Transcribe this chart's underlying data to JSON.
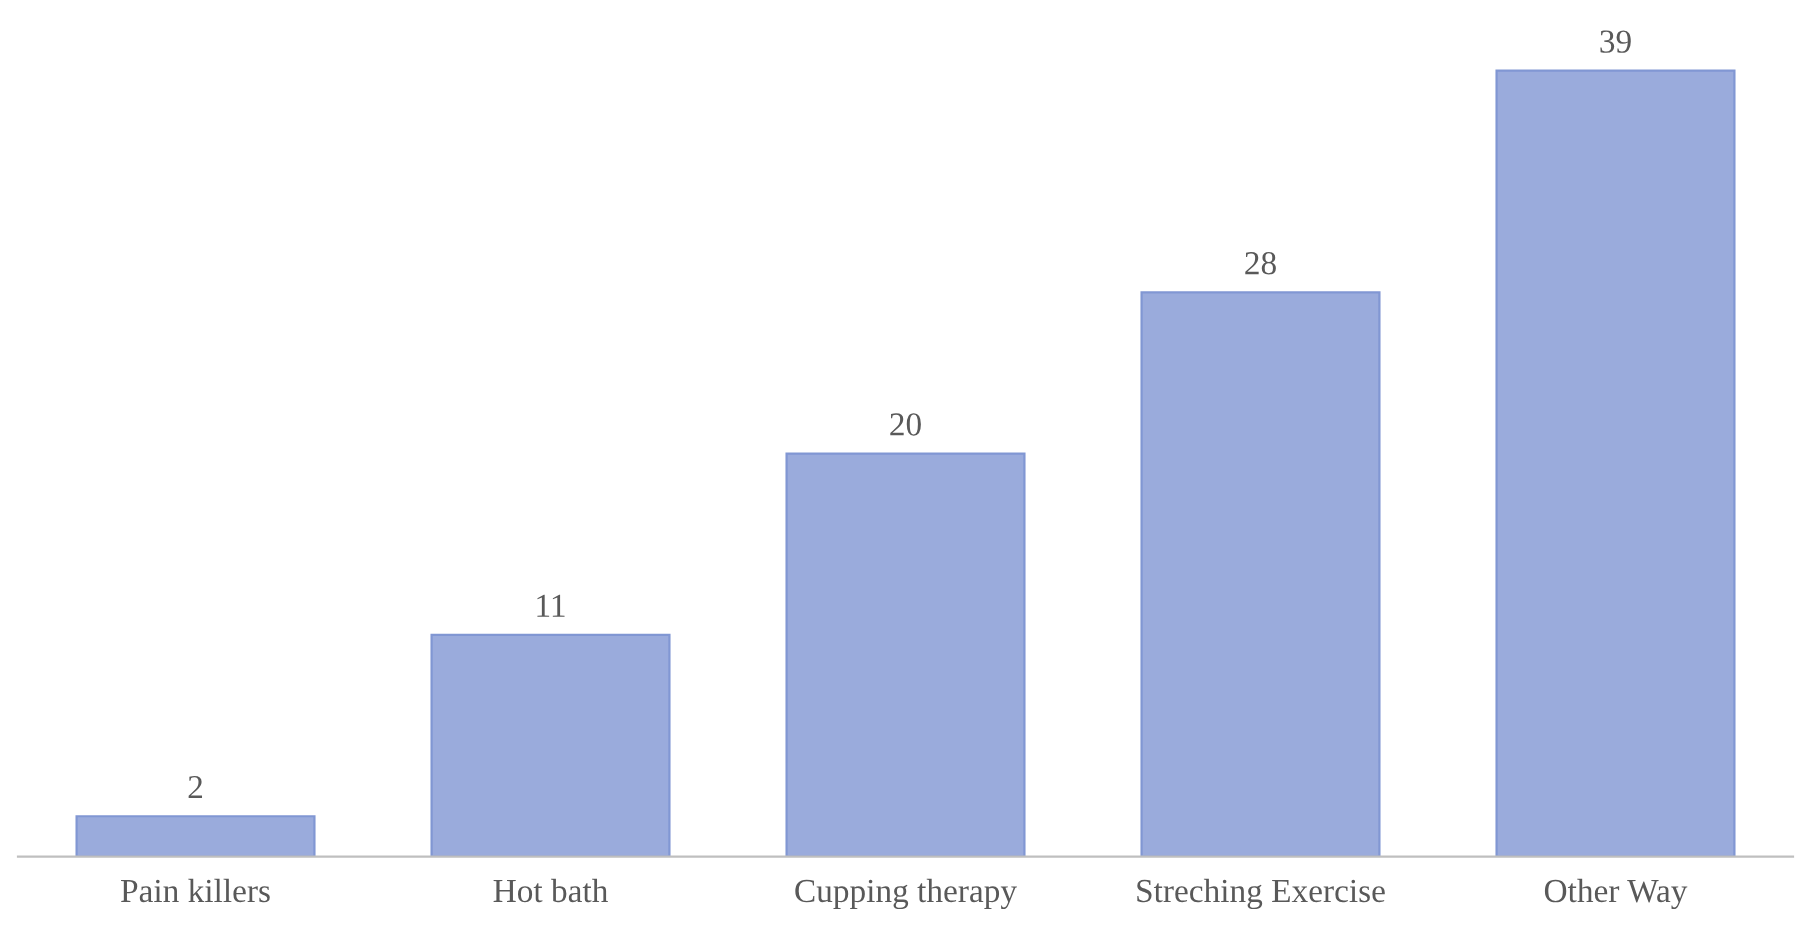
{
  "chart_data": {
    "type": "bar",
    "categories": [
      "Pain killers",
      "Hot bath",
      "Cupping therapy",
      "Streching Exercise",
      "Other Way"
    ],
    "values": [
      2,
      11,
      20,
      28,
      39
    ],
    "color": "#9aabdc",
    "data_labels": true,
    "grid": false,
    "legend": false
  }
}
